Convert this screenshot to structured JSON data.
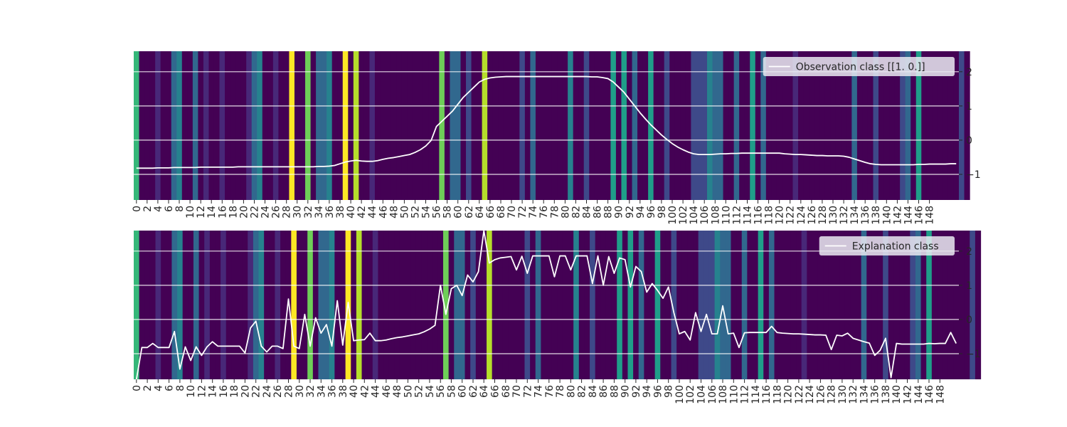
{
  "colors": {
    "colormap": [
      "#440154",
      "#482878",
      "#3e4989",
      "#31688e",
      "#26828e",
      "#1f9e89",
      "#35b779",
      "#6ece58",
      "#b5de2b",
      "#fde725"
    ],
    "line": "#ffffff",
    "grid": "#ffffff",
    "tick_text": "#262626",
    "legend_bg": "#eaeaf2"
  },
  "chart_data": [
    {
      "type": "heatmap",
      "title": "",
      "xlabel": "",
      "ylabel": "",
      "legend_label": "Observation class [[1. 0.]]",
      "legend_placement": "top-right",
      "grid": true,
      "ylim": [
        -1.75,
        2.6
      ],
      "yticks": [
        -1,
        0,
        1,
        2
      ],
      "xticks": [
        0,
        2,
        4,
        6,
        8,
        10,
        12,
        14,
        16,
        18,
        20,
        22,
        24,
        26,
        28,
        30,
        32,
        34,
        36,
        38,
        40,
        42,
        44,
        46,
        48,
        50,
        52,
        54,
        56,
        58,
        60,
        62,
        64,
        66,
        68,
        70,
        72,
        74,
        76,
        78,
        80,
        82,
        84,
        86,
        88,
        90,
        92,
        94,
        96,
        98,
        100,
        102,
        104,
        106,
        108,
        110,
        112,
        114,
        116,
        118,
        120,
        122,
        124,
        126,
        128,
        130,
        132,
        134,
        136,
        138,
        140,
        142,
        144,
        146,
        148
      ],
      "heatmap_levels": [
        6,
        0,
        0,
        0,
        1,
        0,
        0,
        3,
        4,
        0,
        0,
        3,
        0,
        1,
        0,
        0,
        1,
        0,
        0,
        0,
        0,
        1,
        3,
        4,
        0,
        0,
        1,
        0,
        0,
        9,
        0,
        0,
        7,
        0,
        3,
        3,
        4,
        0,
        0,
        9,
        0,
        8,
        0,
        0,
        1,
        0,
        0,
        0,
        0,
        0,
        0,
        0,
        0,
        0,
        0,
        0,
        0,
        7,
        0,
        3,
        3,
        0,
        2,
        0,
        0,
        8,
        0,
        0,
        0,
        0,
        0,
        0,
        2,
        0,
        3,
        0,
        0,
        0,
        0,
        0,
        0,
        4,
        0,
        0,
        2,
        0,
        0,
        0,
        0,
        5,
        0,
        5,
        0,
        3,
        0,
        0,
        5,
        0,
        0,
        2,
        0,
        0,
        0,
        0,
        2,
        2,
        2,
        4,
        3,
        3,
        0,
        0,
        3,
        0,
        0,
        5,
        0,
        3,
        0,
        0,
        0,
        0,
        0,
        1,
        0,
        0,
        0,
        0,
        0,
        0,
        0,
        0,
        0,
        0,
        3,
        0,
        0,
        0,
        2,
        0,
        0,
        0,
        0,
        2,
        3,
        0,
        5,
        0,
        0,
        0,
        0,
        0,
        0,
        0,
        2,
        0
      ],
      "values": [
        -0.82,
        -0.82,
        -0.82,
        -0.82,
        -0.81,
        -0.81,
        -0.81,
        -0.8,
        -0.8,
        -0.8,
        -0.8,
        -0.8,
        -0.79,
        -0.79,
        -0.79,
        -0.79,
        -0.79,
        -0.79,
        -0.79,
        -0.78,
        -0.78,
        -0.78,
        -0.78,
        -0.78,
        -0.78,
        -0.78,
        -0.78,
        -0.78,
        -0.78,
        -0.78,
        -0.78,
        -0.78,
        -0.78,
        -0.78,
        -0.77,
        -0.77,
        -0.76,
        -0.74,
        -0.69,
        -0.64,
        -0.61,
        -0.59,
        -0.61,
        -0.62,
        -0.62,
        -0.6,
        -0.56,
        -0.53,
        -0.51,
        -0.48,
        -0.45,
        -0.42,
        -0.36,
        -0.28,
        -0.17,
        -0.01,
        0.4,
        0.55,
        0.7,
        0.85,
        1.05,
        1.25,
        1.4,
        1.55,
        1.7,
        1.78,
        1.82,
        1.84,
        1.85,
        1.86,
        1.86,
        1.86,
        1.86,
        1.86,
        1.86,
        1.86,
        1.86,
        1.86,
        1.86,
        1.86,
        1.86,
        1.86,
        1.86,
        1.86,
        1.86,
        1.85,
        1.85,
        1.83,
        1.8,
        1.7,
        1.55,
        1.4,
        1.2,
        1.0,
        0.8,
        0.62,
        0.45,
        0.3,
        0.15,
        0.02,
        -0.1,
        -0.2,
        -0.28,
        -0.35,
        -0.4,
        -0.42,
        -0.42,
        -0.42,
        -0.41,
        -0.4,
        -0.4,
        -0.39,
        -0.39,
        -0.38,
        -0.38,
        -0.38,
        -0.38,
        -0.38,
        -0.38,
        -0.38,
        -0.38,
        -0.4,
        -0.41,
        -0.42,
        -0.42,
        -0.43,
        -0.44,
        -0.45,
        -0.45,
        -0.46,
        -0.46,
        -0.46,
        -0.47,
        -0.5,
        -0.55,
        -0.6,
        -0.65,
        -0.69,
        -0.71,
        -0.72,
        -0.72,
        -0.72,
        -0.72,
        -0.72,
        -0.72,
        -0.72,
        -0.71,
        -0.71,
        -0.7,
        -0.7,
        -0.7,
        -0.7,
        -0.69,
        -0.69
      ]
    },
    {
      "type": "heatmap",
      "title": "",
      "xlabel": "",
      "ylabel": "",
      "legend_label": "Explanation class",
      "legend_placement": "top-right",
      "grid": true,
      "ylim": [
        -1.75,
        2.6
      ],
      "yticks": [
        -1,
        0,
        1,
        2
      ],
      "xticks": [
        0,
        2,
        4,
        6,
        8,
        10,
        12,
        14,
        16,
        18,
        20,
        22,
        24,
        26,
        28,
        30,
        32,
        34,
        36,
        38,
        40,
        42,
        44,
        46,
        48,
        50,
        52,
        54,
        56,
        58,
        60,
        62,
        64,
        66,
        68,
        70,
        72,
        74,
        76,
        78,
        80,
        82,
        84,
        86,
        88,
        90,
        92,
        94,
        96,
        98,
        100,
        102,
        104,
        106,
        108,
        110,
        112,
        114,
        116,
        118,
        120,
        122,
        124,
        126,
        128,
        130,
        132,
        134,
        136,
        138,
        140,
        142,
        144,
        146,
        148
      ],
      "heatmap_levels": [
        6,
        0,
        0,
        0,
        1,
        0,
        0,
        3,
        4,
        0,
        0,
        3,
        0,
        1,
        0,
        0,
        1,
        0,
        0,
        0,
        0,
        1,
        3,
        4,
        0,
        0,
        1,
        0,
        0,
        9,
        0,
        0,
        7,
        0,
        3,
        3,
        4,
        0,
        0,
        9,
        0,
        8,
        0,
        0,
        1,
        0,
        0,
        0,
        0,
        0,
        0,
        0,
        0,
        0,
        0,
        0,
        0,
        7,
        0,
        3,
        3,
        0,
        2,
        0,
        0,
        8,
        0,
        0,
        0,
        0,
        0,
        0,
        2,
        0,
        3,
        0,
        0,
        0,
        0,
        0,
        0,
        4,
        0,
        0,
        2,
        0,
        0,
        0,
        0,
        5,
        0,
        5,
        0,
        3,
        0,
        0,
        5,
        0,
        0,
        2,
        0,
        0,
        0,
        0,
        2,
        2,
        2,
        4,
        3,
        3,
        0,
        0,
        3,
        0,
        0,
        5,
        0,
        3,
        0,
        0,
        0,
        0,
        0,
        1,
        0,
        0,
        0,
        0,
        0,
        0,
        0,
        0,
        0,
        0,
        3,
        0,
        0,
        0,
        2,
        0,
        0,
        0,
        0,
        2,
        3,
        0,
        5,
        0,
        0,
        0,
        0,
        0,
        0,
        0,
        2,
        0
      ],
      "values": [
        -1.75,
        -0.82,
        -0.82,
        -0.7,
        -0.82,
        -0.82,
        -0.82,
        -0.35,
        -1.45,
        -0.8,
        -1.2,
        -0.8,
        -1.05,
        -0.8,
        -0.65,
        -0.78,
        -0.78,
        -0.78,
        -0.78,
        -0.78,
        -0.98,
        -0.25,
        -0.05,
        -0.78,
        -0.95,
        -0.78,
        -0.78,
        -0.85,
        0.6,
        -0.78,
        -0.85,
        0.15,
        -0.78,
        0.05,
        -0.4,
        -0.15,
        -0.78,
        0.55,
        -0.75,
        0.5,
        -0.62,
        -0.6,
        -0.59,
        -0.4,
        -0.62,
        -0.62,
        -0.6,
        -0.56,
        -0.53,
        -0.51,
        -0.48,
        -0.45,
        -0.42,
        -0.36,
        -0.28,
        -0.17,
        1.0,
        0.15,
        0.9,
        1.0,
        0.7,
        1.3,
        1.1,
        1.4,
        2.6,
        1.65,
        1.75,
        1.8,
        1.82,
        1.84,
        1.45,
        1.85,
        1.35,
        1.86,
        1.86,
        1.86,
        1.86,
        1.25,
        1.86,
        1.86,
        1.45,
        1.86,
        1.86,
        1.86,
        1.05,
        1.86,
        1.0,
        1.84,
        1.35,
        1.8,
        1.75,
        0.95,
        1.55,
        1.4,
        0.8,
        1.05,
        0.85,
        0.62,
        0.95,
        0.2,
        -0.42,
        -0.35,
        -0.6,
        0.2,
        -0.35,
        0.15,
        -0.42,
        -0.42,
        0.4,
        -0.42,
        -0.4,
        -0.82,
        -0.39,
        -0.38,
        -0.38,
        -0.38,
        -0.38,
        -0.2,
        -0.38,
        -0.4,
        -0.41,
        -0.42,
        -0.42,
        -0.43,
        -0.44,
        -0.45,
        -0.45,
        -0.46,
        -0.88,
        -0.46,
        -0.48,
        -0.4,
        -0.55,
        -0.6,
        -0.65,
        -0.69,
        -1.05,
        -0.9,
        -0.55,
        -1.7,
        -0.7,
        -0.72,
        -0.72,
        -0.72,
        -0.72,
        -0.72,
        -0.7,
        -0.71,
        -0.7,
        -0.7,
        -0.38,
        -0.7
      ]
    }
  ]
}
